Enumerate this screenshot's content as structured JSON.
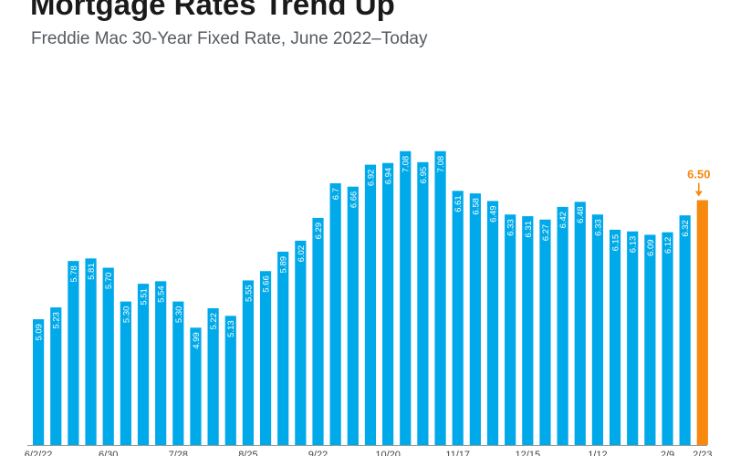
{
  "chart_data": {
    "type": "bar",
    "title": "Mortgage Rates Trend Up",
    "subtitle": "Freddie Mac 30-Year Fixed Rate, June 2022–Today",
    "xlabel": "",
    "ylabel": "",
    "grid": false,
    "legend": "none",
    "colors": {
      "bar": "#00a9e9",
      "highlight": "#f7890e",
      "label": "#ffffff",
      "callout": "#f7890e"
    },
    "values": [
      5.09,
      5.23,
      5.78,
      5.81,
      5.7,
      5.3,
      5.51,
      5.54,
      5.3,
      4.99,
      5.22,
      5.13,
      5.55,
      5.66,
      5.89,
      6.02,
      6.29,
      6.7,
      6.66,
      6.92,
      6.94,
      7.08,
      6.95,
      7.08,
      6.61,
      6.58,
      6.49,
      6.33,
      6.31,
      6.27,
      6.42,
      6.48,
      6.33,
      6.15,
      6.13,
      6.09,
      6.12,
      6.32,
      6.5
    ],
    "value_labels": [
      "5.09",
      "5.23",
      "5.78",
      "5.81",
      "5.70",
      "5.30",
      "5.51",
      "5.54",
      "5.30",
      "4.99",
      "5.22",
      "5.13",
      "5.55",
      "5.66",
      "5.89",
      "6.02",
      "6.29",
      "6.7",
      "6.66",
      "6.92",
      "6.94",
      "7.08",
      "6.95",
      "7.08",
      "6.61",
      "6.58",
      "6.49",
      "6.33",
      "6.31",
      "6.27",
      "6.42",
      "6.48",
      "6.33",
      "6.15",
      "6.13",
      "6.09",
      "6.12",
      "6.32",
      "6.50"
    ],
    "highlight_index": 38,
    "highlight_label": "6.50",
    "x_tick_labels": [
      {
        "index": 0,
        "label": "6/2/22"
      },
      {
        "index": 4,
        "label": "6/30"
      },
      {
        "index": 8,
        "label": "7/28"
      },
      {
        "index": 12,
        "label": "8/25"
      },
      {
        "index": 16,
        "label": "9/22"
      },
      {
        "index": 20,
        "label": "10/20"
      },
      {
        "index": 24,
        "label": "11/17"
      },
      {
        "index": 28,
        "label": "12/15"
      },
      {
        "index": 32,
        "label": "1/12"
      },
      {
        "index": 36,
        "label": "2/9"
      },
      {
        "index": 38,
        "label": "2/23"
      }
    ],
    "ylim": [
      3.6,
      7.65
    ]
  }
}
